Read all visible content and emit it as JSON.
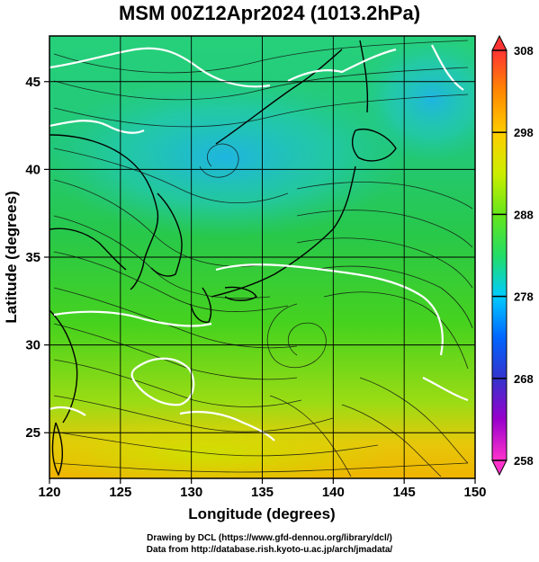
{
  "title": "MSM 00Z12Apr2024 (1013.2hPa)",
  "map": {
    "lon_range": [
      120,
      150
    ],
    "lat_range": [
      22.4,
      47.6
    ],
    "xticks": [
      120,
      125,
      130,
      135,
      140,
      145,
      150
    ],
    "yticks": [
      25,
      30,
      35,
      40,
      45
    ],
    "xlabel": "Longitude (degrees)",
    "ylabel": "Latitude  (degrees)",
    "grid": true,
    "field": "temperature (K) shaded with streamlines",
    "contour_color": "#ffffff"
  },
  "colorbar": {
    "min": 258,
    "max": 308,
    "ticks": [
      258,
      268,
      278,
      288,
      298,
      308
    ],
    "colors": [
      "#ff33cc",
      "#9900cc",
      "#3333cc",
      "#0066ff",
      "#00ccff",
      "#22dd66",
      "#66e61a",
      "#ccee00",
      "#ffcc00",
      "#ff8800",
      "#ff3333"
    ]
  },
  "credits": {
    "line1": "Drawing by DCL (https://www.gfd-dennou.org/library/dcl/)",
    "line2": "Data from http://database.rish.kyoto-u.ac.jp/arch/jmadata/"
  }
}
